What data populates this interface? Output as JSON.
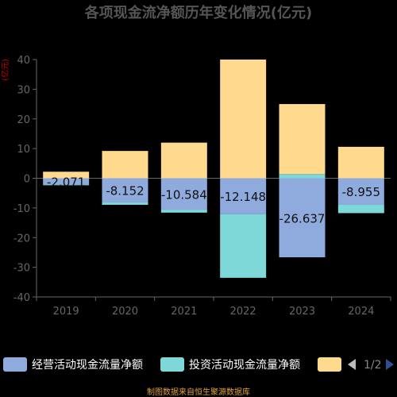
{
  "chart_data": {
    "type": "bar",
    "stacked": true,
    "title": "各项现金流净额历年变化情况(亿元)",
    "y_unit_label": "(亿元)",
    "categories": [
      "2019",
      "2020",
      "2021",
      "2022",
      "2023",
      "2024"
    ],
    "ylim": [
      -40,
      40
    ],
    "yticks": [
      40,
      30,
      20,
      10,
      0,
      -10,
      -20,
      -30,
      -40
    ],
    "grid": false,
    "legend_position": "bottom",
    "series": [
      {
        "name": "经营活动现金流量净额",
        "color": "#8faadc",
        "values": [
          -2.071,
          -8.152,
          -10.584,
          -12.148,
          -26.637,
          -8.955
        ],
        "data_labels": [
          "-2.071",
          "-8.152",
          "-10.584",
          "-12.148",
          "-26.637",
          "-8.955"
        ]
      },
      {
        "name": "投资活动现金流量净额",
        "color": "#7fd8d8",
        "values": [
          -0.3,
          -0.8,
          -1.0,
          -21.4,
          1.4,
          -2.8
        ]
      },
      {
        "name": "",
        "color": "#ffd98e",
        "values": [
          2.2,
          9.2,
          12.0,
          40.0,
          23.6,
          10.6
        ]
      }
    ]
  },
  "legend": {
    "items": [
      {
        "label": "经营活动现金流量净额",
        "color": "#8faadc"
      },
      {
        "label": "投资活动现金流量净额",
        "color": "#7fd8d8"
      },
      {
        "label": "",
        "color": "#ffd98e"
      }
    ],
    "pager": "1/2"
  },
  "footer": {
    "source": "制图数据来自恒生聚源数据库"
  }
}
